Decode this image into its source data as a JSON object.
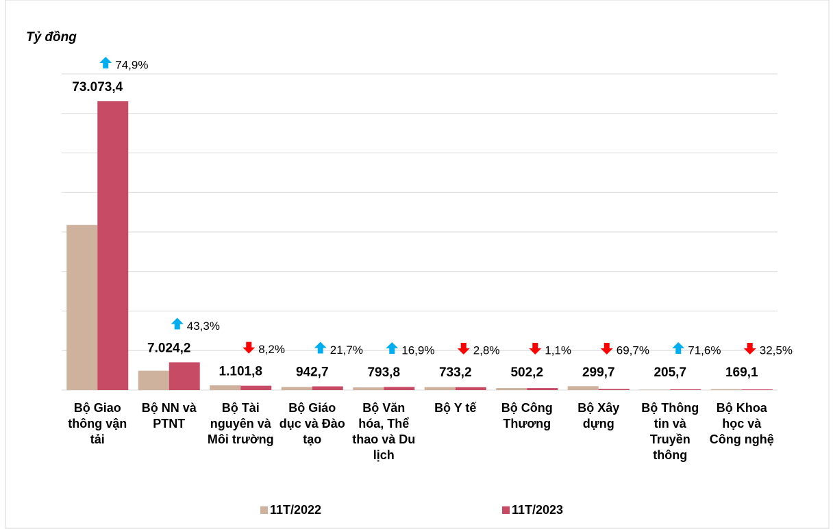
{
  "chart_data": {
    "type": "bar",
    "y_label": "Tỷ đồng",
    "categories": [
      "Bộ Giao thông vận tải",
      "Bộ NN và PTNT",
      "Bộ Tài nguyên và Môi trường",
      "Bộ Giáo dục và Đào tạo",
      "Bộ Văn hóa, Thể thao và Du lịch",
      "Bộ Y tế",
      "Bộ Công Thương",
      "Bộ Xây dựng",
      "Bộ Thông tin và Truyền thông",
      "Bộ Khoa học và Công nghệ"
    ],
    "series": [
      {
        "name": "11T/2022",
        "color": "#cfb29d",
        "values": [
          41780.1,
          4901.7,
          1200.2,
          774.6,
          679.0,
          754.3,
          507.8,
          989.1,
          119.9,
          250.5
        ]
      },
      {
        "name": "11T/2023",
        "color": "#c84b65",
        "values": [
          73073.4,
          7024.2,
          1101.8,
          942.7,
          793.8,
          733.2,
          502.2,
          299.7,
          205.7,
          169.1
        ],
        "value_labels": [
          "73.073,4",
          "7.024,2",
          "1.101,8",
          "942,7",
          "793,8",
          "733,2",
          "502,2",
          "299,7",
          "205,7",
          "169,1"
        ]
      }
    ],
    "change_values": [
      74.9,
      43.3,
      8.2,
      21.7,
      16.9,
      2.8,
      1.1,
      69.7,
      71.6,
      32.5
    ],
    "change_labels": [
      "74,9%",
      "43,3%",
      "8,2%",
      "21,7%",
      "16,9%",
      "2,8%",
      "1,1%",
      "69,7%",
      "71,6%",
      "32,5%"
    ],
    "change_directions": [
      "up",
      "up",
      "down",
      "up",
      "up",
      "down",
      "down",
      "down",
      "up",
      "down"
    ],
    "arrow_colors": {
      "up": "#00aeef",
      "down": "#ff0000"
    },
    "ylim": [
      0,
      80000
    ],
    "yticks": [
      0,
      10000,
      20000,
      30000,
      40000,
      50000,
      60000,
      70000,
      80000
    ],
    "grid": true
  }
}
